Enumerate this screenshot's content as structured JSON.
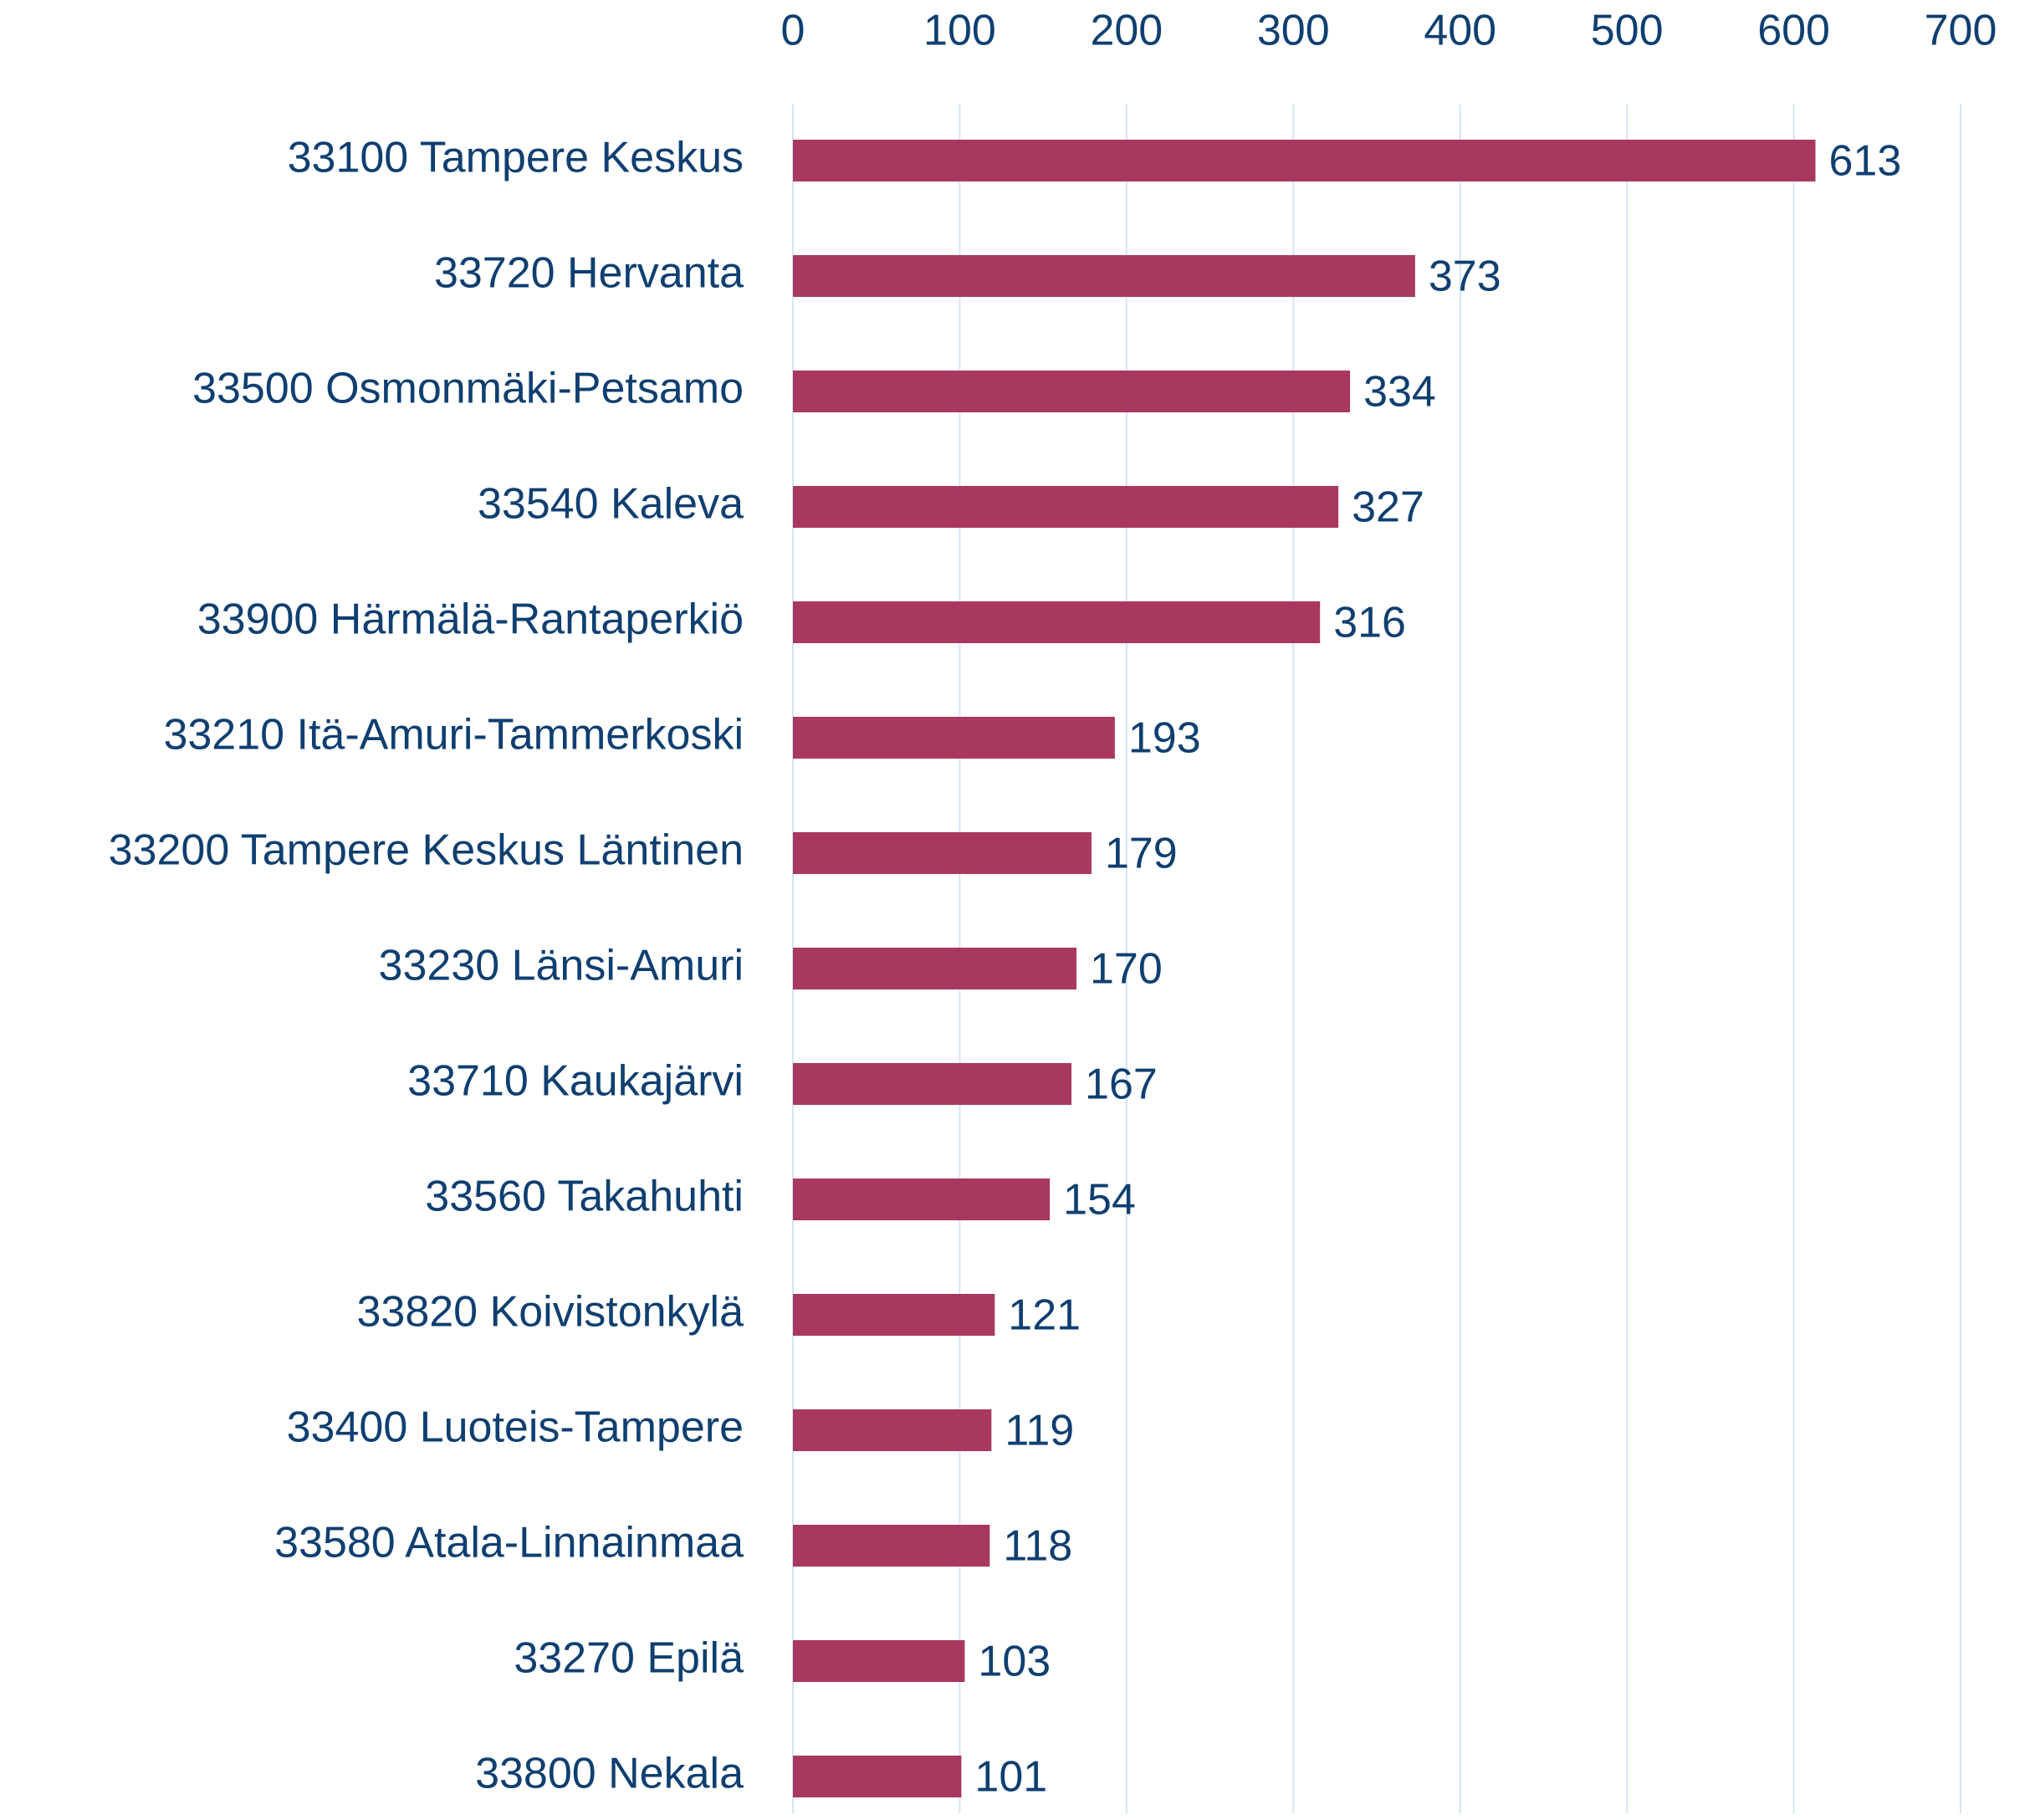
{
  "chart_data": {
    "type": "hbar",
    "categories": [
      "33100 Tampere Keskus",
      "33720 Hervanta",
      "33500 Osmonmäki-Petsamo",
      "33540 Kaleva",
      "33900 Härmälä-Rantaperkiö",
      "33210 Itä-Amuri-Tammerkoski",
      "33200 Tampere Keskus Läntinen",
      "33230 Länsi-Amuri",
      "33710 Kaukajärvi",
      "33560 Takahuhti",
      "33820 Koivistonkylä",
      "33400 Luoteis-Tampere",
      "33580 Atala-Linnainmaa",
      "33270 Epilä",
      "33800 Nekala"
    ],
    "values": [
      613,
      373,
      334,
      327,
      316,
      193,
      179,
      170,
      167,
      154,
      121,
      119,
      118,
      103,
      101
    ],
    "color": "#a93861",
    "xlim": [
      0,
      700
    ],
    "xticks": [
      0,
      100,
      200,
      300,
      400,
      500,
      600,
      700
    ],
    "grid": true
  }
}
